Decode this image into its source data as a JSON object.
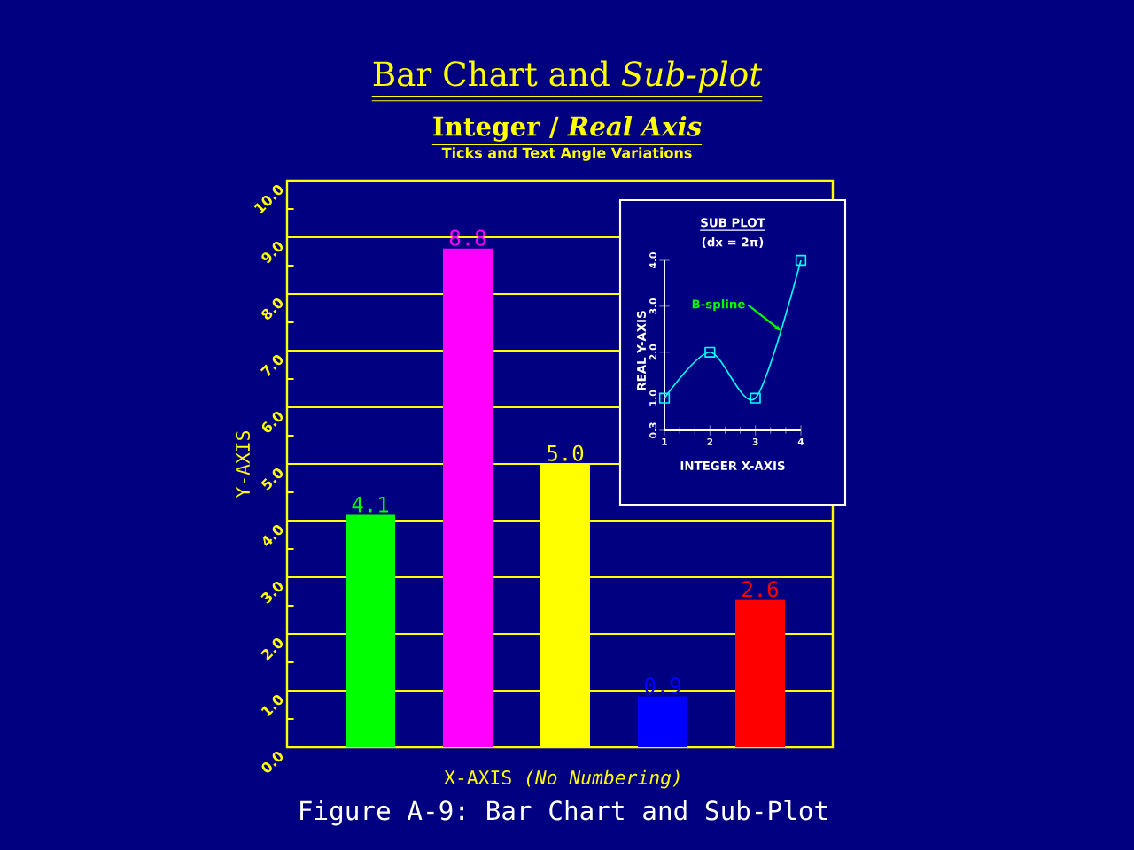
{
  "chart_data": [
    {
      "type": "bar",
      "title": "Bar Chart and *Sub-plot*",
      "subtitle": "Integer / *Real Axis*",
      "xlabel": "X-AXIS *(No Numbering)*",
      "ylabel": "Y-AXIS",
      "annotations": [
        "Ticks and Text Angle Variations",
        "Figure A-9: Bar Chart and Sub-Plot"
      ],
      "categories": [
        null,
        null,
        null,
        null,
        null
      ],
      "values": [
        4.1,
        8.8,
        5.0,
        0.9,
        2.6
      ],
      "colors": [
        "#00ff00",
        "#ff00ff",
        "#ffff00",
        "#0000ff",
        "#ff0000"
      ],
      "ylim": [
        0,
        10
      ],
      "yticks": [
        {
          "value": 0,
          "label": "0.0"
        },
        {
          "value": 1,
          "label": "1.0"
        },
        {
          "value": 2,
          "label": "2.0"
        },
        {
          "value": 3,
          "label": "3.0"
        },
        {
          "value": 4,
          "label": "4.0"
        },
        {
          "value": 5,
          "label": "5.0"
        },
        {
          "value": 6,
          "label": "6.0"
        },
        {
          "value": 7,
          "label": "7.0"
        },
        {
          "value": 8,
          "label": "8.0"
        },
        {
          "value": 9,
          "label": "9.0"
        },
        {
          "value": 10,
          "label": "10.0"
        }
      ],
      "grid": "y",
      "value_labels": [
        "4.1",
        "8.8",
        "5.0",
        "0.9",
        "2.6"
      ]
    },
    {
      "type": "line",
      "title": "SUB PLOT",
      "subtitle": "(dx = 2π)",
      "xlabel": "INTEGER X-AXIS",
      "ylabel": "REAL Y-AXIS",
      "x": [
        1,
        2,
        3,
        4
      ],
      "series": [
        {
          "color": "#00ffff",
          "values": [
            1,
            2,
            1,
            4
          ]
        }
      ],
      "xlim": [
        1,
        4
      ],
      "xticks": [
        1,
        2,
        3,
        4
      ],
      "ylim": [
        0.3,
        4
      ],
      "yticks": [
        {
          "value": 0.3,
          "label": "0.3"
        },
        {
          "value": 1,
          "label": "1.0"
        },
        {
          "value": 2,
          "label": "2.0"
        },
        {
          "value": 3,
          "label": "3.0"
        },
        {
          "value": 4,
          "label": "4.0"
        }
      ],
      "marker": "square",
      "annotations": [
        {
          "text": "B-spline",
          "x": 3.57,
          "y": 2.46
        }
      ]
    }
  ]
}
